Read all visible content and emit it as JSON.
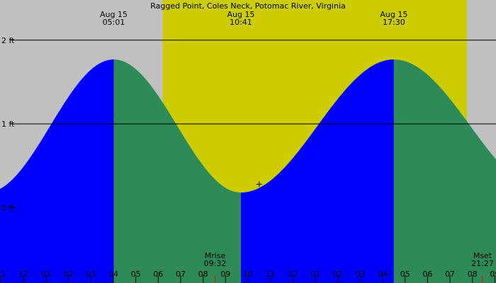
{
  "chart_data": {
    "type": "area",
    "title": "Ragged Point, Coles Neck, Potomac River, Virginia",
    "xlabel": "",
    "ylabel": "",
    "ylim": [
      -0.9,
      2.48
    ],
    "xlim": [
      -0.05,
      22.05
    ],
    "y_ticks": [
      {
        "value": 2,
        "label": "2 ft"
      },
      {
        "value": 1,
        "label": "1 ft"
      },
      {
        "value": 0,
        "label": "0 ft"
      }
    ],
    "x_tick_labels": [
      "11",
      "12",
      "01",
      "02",
      "03",
      "04",
      "05",
      "06",
      "07",
      "08",
      "09",
      "10",
      "11",
      "12",
      "01",
      "02",
      "03",
      "04",
      "05",
      "06",
      "07",
      "08",
      "09"
    ],
    "daylight": {
      "start": 7.2,
      "end": 20.75,
      "color": "#cccc00"
    },
    "tides": [
      {
        "type": "high",
        "time": 5.017,
        "height": 1.77,
        "date_label": "Aug 15",
        "time_label": "05:01"
      },
      {
        "type": "low",
        "time": 10.683,
        "height": 0.18,
        "date_label": "Aug 15",
        "time_label": "10:41"
      },
      {
        "type": "high",
        "time": 17.5,
        "height": 1.77,
        "date_label": "Aug 15",
        "time_label": "17:30"
      }
    ],
    "current_time": {
      "time": 11.5,
      "height": 0.28
    },
    "moon": [
      {
        "name": "Mrise",
        "time": 9.533,
        "time_label": "09:32"
      },
      {
        "name": "Mset",
        "time": 21.45,
        "time_label": "21:27"
      }
    ],
    "colors": {
      "background": "#c0c0c0",
      "rising": "#0000ff",
      "falling": "#2e8b57",
      "moon_tick": "#ff0000"
    }
  }
}
